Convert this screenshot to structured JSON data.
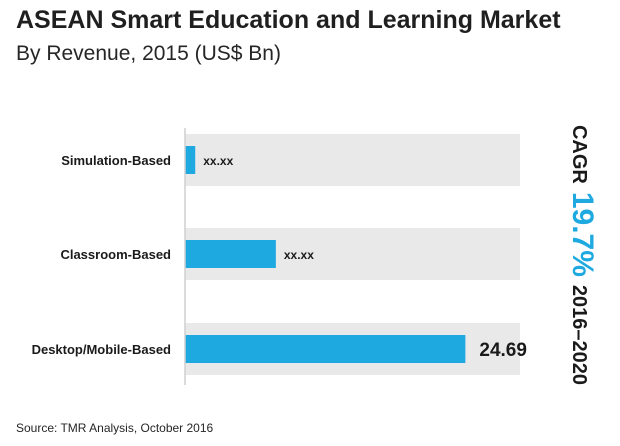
{
  "title": "ASEAN Smart Education and Learning Market",
  "subtitle": "By Revenue, 2015 (US$ Bn)",
  "source": "Source: TMR Analysis, October 2016",
  "cagr": {
    "label": "CAGR",
    "value": "19.7%",
    "period": "2016–2020"
  },
  "colors": {
    "bar": "#1ea9e1",
    "track": "#e9e9e9",
    "axis": "#cfcfcf",
    "accent": "#1ea9e1"
  },
  "chart_data": {
    "type": "bar",
    "orientation": "horizontal",
    "categories": [
      "Simulation-Based",
      "Classroom-Based",
      "Desktop/Mobile-Based"
    ],
    "values": [
      0.9,
      8.0,
      24.69
    ],
    "data_labels": [
      "xx.xx",
      "xx.xx",
      "24.69"
    ],
    "xlim": [
      0,
      29.5
    ],
    "grid": false,
    "legend": "none"
  }
}
